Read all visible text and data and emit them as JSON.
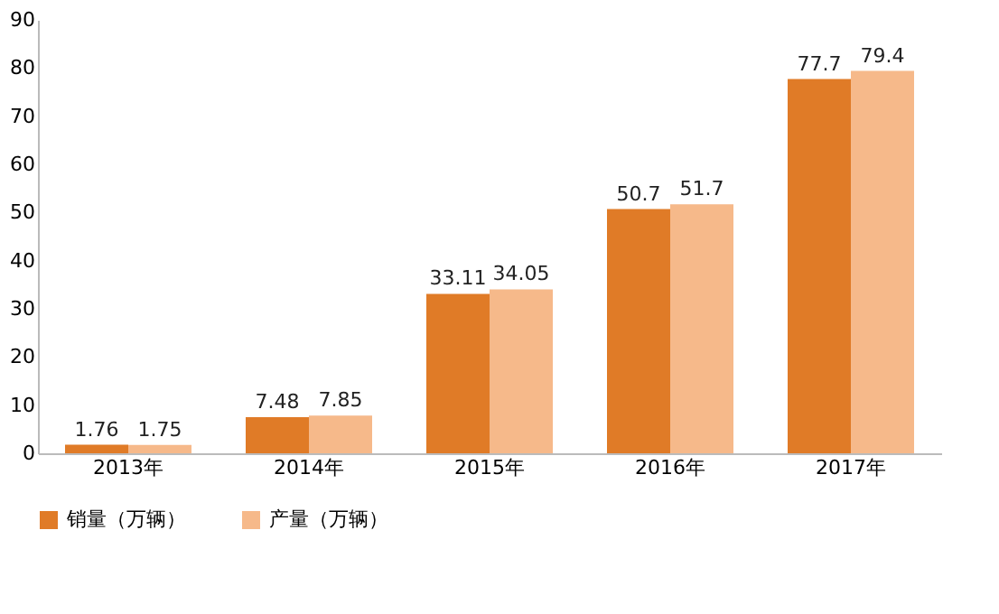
{
  "chart_data": {
    "type": "bar",
    "categories": [
      "2013年",
      "2014年",
      "2015年",
      "2016年",
      "2017年"
    ],
    "series": [
      {
        "name": "销量（万辆）",
        "color": "#e07b27",
        "values": [
          1.76,
          7.48,
          33.11,
          50.7,
          77.7
        ]
      },
      {
        "name": "产量（万辆）",
        "color": "#f6b98a",
        "values": [
          1.75,
          7.85,
          34.05,
          51.7,
          79.4
        ]
      }
    ],
    "ylim": [
      0,
      90
    ],
    "yticks": [
      0,
      10,
      20,
      30,
      40,
      50,
      60,
      70,
      80,
      90
    ],
    "grid": false,
    "legend": "bottom",
    "data_labels": true
  }
}
